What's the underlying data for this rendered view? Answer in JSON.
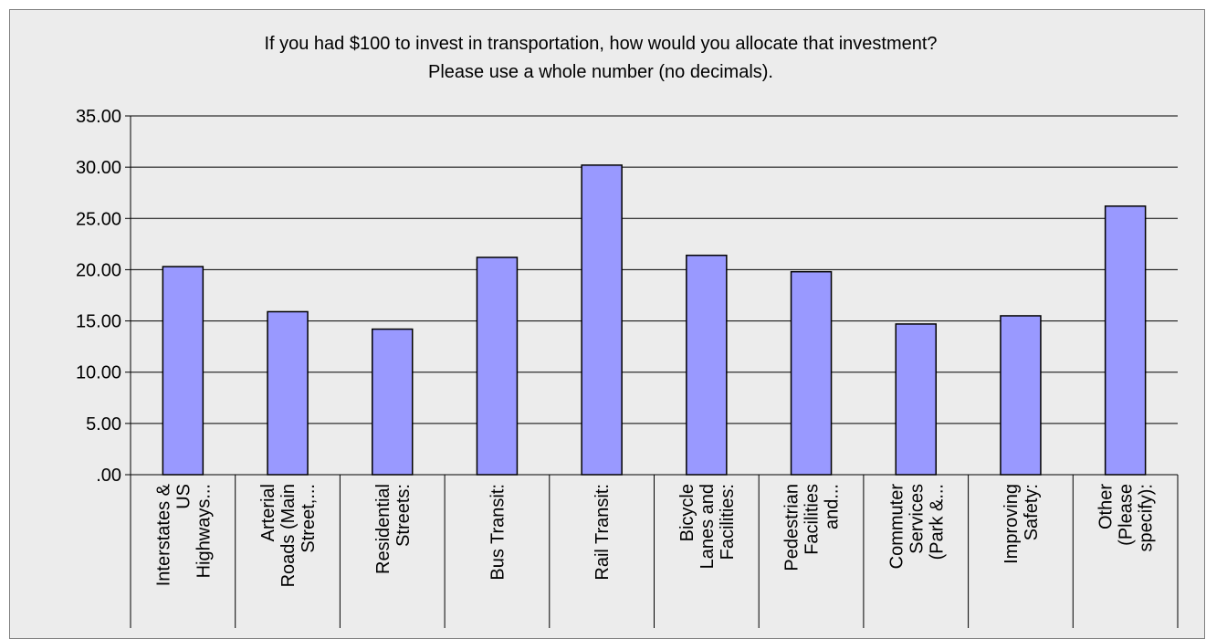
{
  "chart_data": {
    "type": "bar",
    "title_lines": [
      "If you had $100 to invest in transportation, how would you allocate that investment?",
      "Please use a whole number (no decimals)."
    ],
    "xlabel": "",
    "ylabel": "",
    "ylim": [
      0,
      35
    ],
    "ytick_labels": [
      ".00",
      "5.00",
      "10.00",
      "15.00",
      "20.00",
      "25.00",
      "30.00",
      "35.00"
    ],
    "grid": true,
    "legend": "none",
    "categories": [
      [
        "Interstates &",
        "US",
        "Highways..."
      ],
      [
        "Arterial",
        "Roads (Main",
        "Street,..."
      ],
      [
        "Residential",
        "Streets:"
      ],
      [
        "Bus Transit:"
      ],
      [
        "Rail Transit:"
      ],
      [
        "Bicycle",
        "Lanes and",
        "Facilities:"
      ],
      [
        "Pedestrian",
        "Facilities",
        "and..."
      ],
      [
        "Commuter",
        "Services",
        "(Park &..."
      ],
      [
        "Improving",
        "Safety:"
      ],
      [
        "Other",
        "(Please",
        "specify):"
      ]
    ],
    "values": [
      20.3,
      15.9,
      14.2,
      21.2,
      30.2,
      21.4,
      19.8,
      14.7,
      15.5,
      26.2
    ],
    "colors": {
      "bar_fill": "#9999ff",
      "bar_stroke": "#000000",
      "grid": "#000000",
      "background": "#ececec"
    }
  }
}
